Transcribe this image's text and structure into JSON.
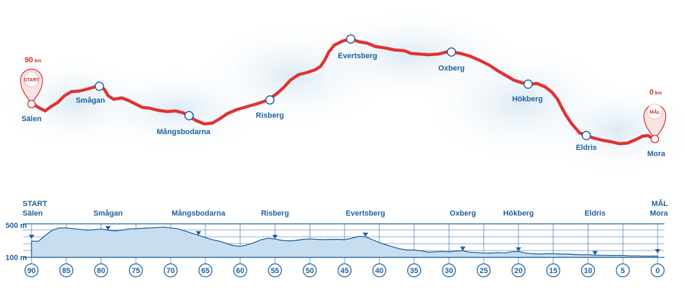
{
  "map": {
    "start_km": "90",
    "finish_km": "0",
    "km_unit": "km",
    "start_pin_label": "START",
    "finish_pin_label": "MÅL",
    "route_color": "#e03232",
    "places": [
      {
        "name": "Sälen"
      },
      {
        "name": "Smågan"
      },
      {
        "name": "Mångsbodarna"
      },
      {
        "name": "Risberg"
      },
      {
        "name": "Evertsberg"
      },
      {
        "name": "Oxberg"
      },
      {
        "name": "Hökberg"
      },
      {
        "name": "Eldris"
      },
      {
        "name": "Mora"
      }
    ]
  },
  "profile": {
    "start_label_line1": "START",
    "start_label_line2": "Sälen",
    "finish_label_line1": "MÅL",
    "finish_label_line2": "Mora",
    "checkpoints": [
      {
        "name": "Smågan",
        "km": 79
      },
      {
        "name": "Mångsbodarna",
        "km": 66
      },
      {
        "name": "Risberg",
        "km": 55
      },
      {
        "name": "Evertsberg",
        "km": 42
      },
      {
        "name": "Oxberg",
        "km": 28
      },
      {
        "name": "Hökberg",
        "km": 20
      },
      {
        "name": "Eldris",
        "km": 9
      }
    ],
    "y_labels": [
      "500 m",
      "100 m"
    ],
    "fill_color": "#c6def0",
    "line_color": "#1f5f9e"
  },
  "chart_data": {
    "type": "area",
    "x_label": "km",
    "xlim": [
      90,
      0
    ],
    "ylim": [
      100,
      500
    ],
    "y_ticks": [
      500,
      100
    ],
    "x_ticks": [
      90,
      85,
      80,
      75,
      70,
      65,
      60,
      55,
      50,
      45,
      40,
      35,
      30,
      25,
      20,
      15,
      10,
      5,
      0
    ],
    "series": [
      {
        "x": [
          90,
          89,
          88,
          87,
          86,
          85,
          84,
          83,
          82,
          81,
          80,
          79,
          78,
          77,
          76,
          75,
          74,
          73,
          72,
          71,
          70,
          69,
          68,
          67,
          66,
          65,
          64,
          63,
          62,
          61,
          60,
          59,
          58,
          57,
          56,
          55,
          54,
          53,
          52,
          51,
          50,
          49,
          48,
          47,
          46,
          45,
          44,
          43,
          42,
          41,
          40,
          39,
          38,
          37,
          36,
          35,
          34,
          33,
          32,
          31,
          30,
          29,
          28,
          27,
          26,
          25,
          24,
          23,
          22,
          21,
          20,
          19,
          18,
          17,
          16,
          15,
          14,
          13,
          12,
          11,
          10,
          9,
          8,
          7,
          6,
          5,
          4,
          3,
          2,
          1,
          0
        ],
        "y": [
          320,
          320,
          400,
          470,
          500,
          500,
          490,
          480,
          470,
          475,
          485,
          470,
          460,
          470,
          485,
          490,
          495,
          500,
          505,
          510,
          500,
          490,
          460,
          430,
          400,
          370,
          340,
          320,
          290,
          260,
          250,
          270,
          300,
          340,
          360,
          350,
          330,
          325,
          330,
          345,
          350,
          345,
          340,
          345,
          345,
          340,
          360,
          385,
          380,
          340,
          300,
          270,
          240,
          215,
          200,
          200,
          190,
          170,
          175,
          180,
          175,
          185,
          190,
          170,
          165,
          160,
          158,
          165,
          160,
          175,
          180,
          160,
          150,
          145,
          150,
          150,
          145,
          145,
          140,
          135,
          135,
          130,
          128,
          125,
          125,
          125,
          120,
          120,
          118,
          118,
          118
        ]
      }
    ]
  }
}
